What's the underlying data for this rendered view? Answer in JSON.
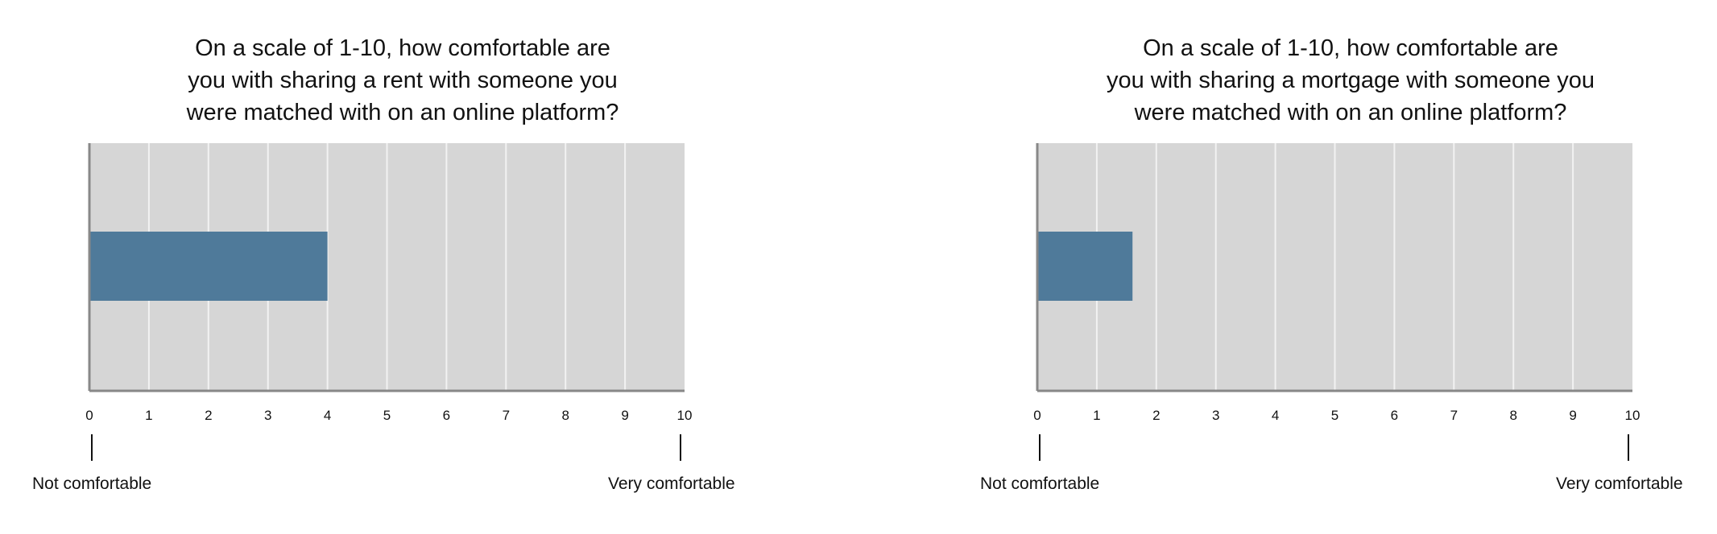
{
  "chart_data": [
    {
      "type": "bar",
      "orientation": "horizontal",
      "title": "On a scale of 1-10, how comfortable are\nyou with sharing a rent with someone you\nwere matched with on an online platform?",
      "xlim": [
        0,
        10
      ],
      "x_ticks": [
        "0",
        "1",
        "2",
        "3",
        "4",
        "5",
        "6",
        "7",
        "8",
        "9",
        "10"
      ],
      "grid": true,
      "values": [
        4.0
      ],
      "min_label": "Not comfortable",
      "max_label": "Very comfortable"
    },
    {
      "type": "bar",
      "orientation": "horizontal",
      "title": "On a scale of 1-10, how comfortable are\nyou with sharing a mortgage with someone you\nwere matched with on an online platform?",
      "xlim": [
        0,
        10
      ],
      "x_ticks": [
        "0",
        "1",
        "2",
        "3",
        "4",
        "5",
        "6",
        "7",
        "8",
        "9",
        "10"
      ],
      "grid": true,
      "values": [
        1.6
      ],
      "min_label": "Not comfortable",
      "max_label": "Very comfortable"
    }
  ],
  "colors": {
    "bar": "#4f7a9a",
    "plot_background": "#d6d6d6",
    "grid": "#f2f2f2",
    "axis": "#888888"
  }
}
